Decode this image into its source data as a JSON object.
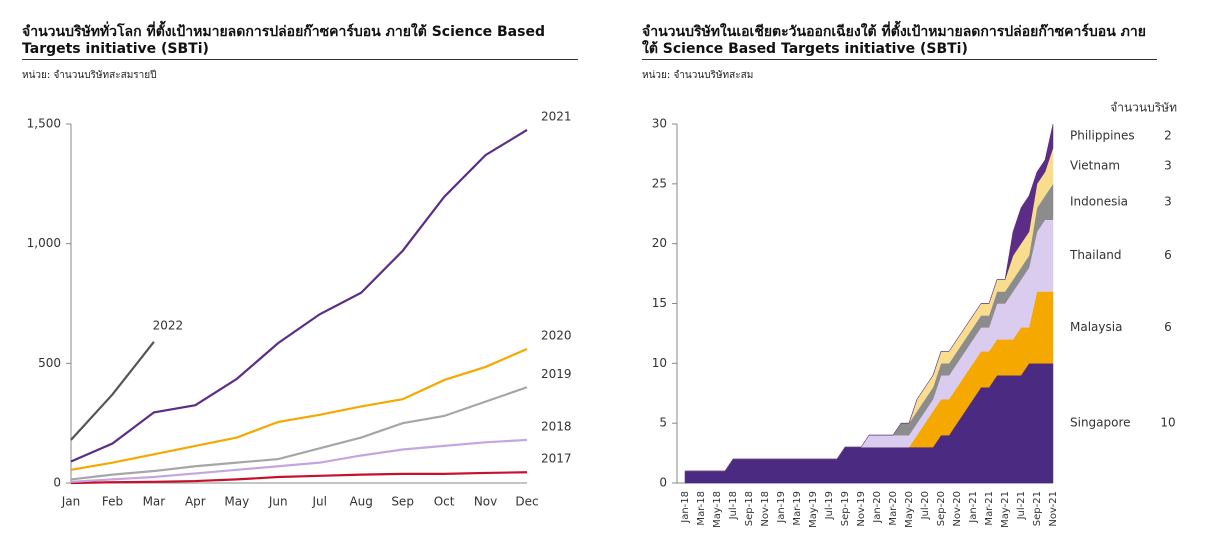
{
  "chart_data": [
    {
      "type": "line",
      "title": "จำนวนบริษัททั่วโลก ที่ตั้งเป้าหมายลดการปล่อยก๊าซคาร์บอน ภายใต้ Science Based Targets initiative (SBTi)",
      "subtitle": "หน่วย: จำนวนบริษัทสะสมรายปี",
      "categories": [
        "Jan",
        "Feb",
        "Mar",
        "Apr",
        "May",
        "Jun",
        "Jul",
        "Aug",
        "Sep",
        "Oct",
        "Nov",
        "Dec"
      ],
      "series": [
        {
          "name": "2017",
          "color": "#c8102e",
          "values": [
            0,
            3,
            5,
            8,
            15,
            25,
            30,
            35,
            38,
            38,
            42,
            45
          ]
        },
        {
          "name": "2018",
          "color": "#c3a6e0",
          "values": [
            5,
            15,
            25,
            40,
            55,
            70,
            85,
            115,
            140,
            155,
            170,
            180
          ]
        },
        {
          "name": "2019",
          "color": "#a6a6a6",
          "values": [
            15,
            35,
            50,
            70,
            85,
            100,
            145,
            190,
            250,
            280,
            340,
            400
          ]
        },
        {
          "name": "2020",
          "color": "#f5a800",
          "values": [
            55,
            85,
            120,
            155,
            190,
            255,
            285,
            320,
            350,
            430,
            485,
            560
          ]
        },
        {
          "name": "2021",
          "color": "#5b2d86",
          "values": [
            90,
            165,
            295,
            325,
            435,
            585,
            705,
            795,
            970,
            1195,
            1370,
            1475
          ]
        },
        {
          "name": "2022",
          "color": "#555555",
          "values": [
            180,
            370,
            590,
            null,
            null,
            null,
            null,
            null,
            null,
            null,
            null,
            null
          ]
        }
      ],
      "ylim": [
        0,
        1500
      ],
      "yticks": [
        0,
        500,
        {
          "value": 1000,
          "label": "1,000"
        },
        {
          "value": 1500,
          "label": "1,500"
        }
      ],
      "grid": false
    },
    {
      "type": "stacked_area",
      "title": "จำนวนบริษัทในเอเชียตะวันออกเฉียงใต้ ที่ตั้งเป้าหมายลดการปล่อยก๊าซคาร์บอน ภายใต้ Science Based Targets initiative (SBTi)",
      "subtitle": "หน่วย: จำนวนบริษัทสะสม",
      "legend_title": "จำนวนบริษัท",
      "categories": [
        "Jan-18",
        null,
        "Mar-18",
        null,
        "May-18",
        null,
        "Jul-18",
        null,
        "Sep-18",
        null,
        "Nov-18",
        null,
        "Jan-19",
        null,
        "Mar-19",
        null,
        "May-19",
        null,
        "Jul-19",
        null,
        "Sep-19",
        null,
        "Nov-19",
        null,
        "Jan-20",
        null,
        "Mar-20",
        null,
        "May-20",
        null,
        "Jul-20",
        null,
        "Sep-20",
        null,
        "Nov-20",
        null,
        "Jan-21",
        null,
        "Mar-21",
        null,
        "May-21",
        null,
        "Jul-21",
        null,
        "Sep-21",
        null,
        "Nov-21"
      ],
      "series": [
        {
          "name": "Singapore",
          "color": "#4b2a82",
          "values": [
            1,
            1,
            1,
            1,
            1,
            1,
            2,
            2,
            2,
            2,
            2,
            2,
            2,
            2,
            2,
            2,
            2,
            2,
            2,
            2,
            3,
            3,
            3,
            3,
            3,
            3,
            3,
            3,
            3,
            3,
            3,
            3,
            4,
            4,
            5,
            6,
            7,
            8,
            8,
            9,
            9,
            9,
            9,
            10,
            10,
            10,
            10
          ]
        },
        {
          "name": "Malaysia",
          "color": "#f5a800",
          "values": [
            0,
            0,
            0,
            0,
            0,
            0,
            0,
            0,
            0,
            0,
            0,
            0,
            0,
            0,
            0,
            0,
            0,
            0,
            0,
            0,
            0,
            0,
            0,
            0,
            0,
            0,
            0,
            0,
            0,
            1,
            2,
            3,
            3,
            3,
            3,
            3,
            3,
            3,
            3,
            3,
            3,
            3,
            4,
            3,
            6,
            6,
            6
          ]
        },
        {
          "name": "Thailand",
          "color": "#d9ccef",
          "values": [
            0,
            0,
            0,
            0,
            0,
            0,
            0,
            0,
            0,
            0,
            0,
            0,
            0,
            0,
            0,
            0,
            0,
            0,
            0,
            0,
            0,
            0,
            0,
            1,
            1,
            1,
            1,
            1,
            1,
            1,
            1,
            1,
            2,
            2,
            2,
            2,
            2,
            2,
            2,
            3,
            3,
            4,
            4,
            5,
            5,
            6,
            6
          ]
        },
        {
          "name": "Indonesia",
          "color": "#8c8c8c",
          "values": [
            0,
            0,
            0,
            0,
            0,
            0,
            0,
            0,
            0,
            0,
            0,
            0,
            0,
            0,
            0,
            0,
            0,
            0,
            0,
            0,
            0,
            0,
            0,
            0,
            0,
            0,
            0,
            1,
            1,
            1,
            1,
            1,
            1,
            1,
            1,
            1,
            1,
            1,
            1,
            1,
            1,
            1,
            1,
            1,
            2,
            2,
            3
          ]
        },
        {
          "name": "Vietnam",
          "color": "#f8dd8e",
          "values": [
            0,
            0,
            0,
            0,
            0,
            0,
            0,
            0,
            0,
            0,
            0,
            0,
            0,
            0,
            0,
            0,
            0,
            0,
            0,
            0,
            0,
            0,
            0,
            0,
            0,
            0,
            0,
            0,
            0,
            1,
            1,
            1,
            1,
            1,
            1,
            1,
            1,
            1,
            1,
            1,
            1,
            2,
            2,
            2,
            2,
            2,
            3
          ]
        },
        {
          "name": "Philippines",
          "color": "#5b2d86",
          "values": [
            0,
            0,
            0,
            0,
            0,
            0,
            0,
            0,
            0,
            0,
            0,
            0,
            0,
            0,
            0,
            0,
            0,
            0,
            0,
            0,
            0,
            0,
            0,
            0,
            0,
            0,
            0,
            0,
            0,
            0,
            0,
            0,
            0,
            0,
            0,
            0,
            0,
            0,
            0,
            0,
            0,
            2,
            3,
            3,
            1,
            1,
            2
          ]
        }
      ],
      "ylim": [
        0,
        30
      ],
      "yticks": [
        0,
        5,
        10,
        15,
        20,
        25,
        30
      ],
      "grid": false
    }
  ]
}
